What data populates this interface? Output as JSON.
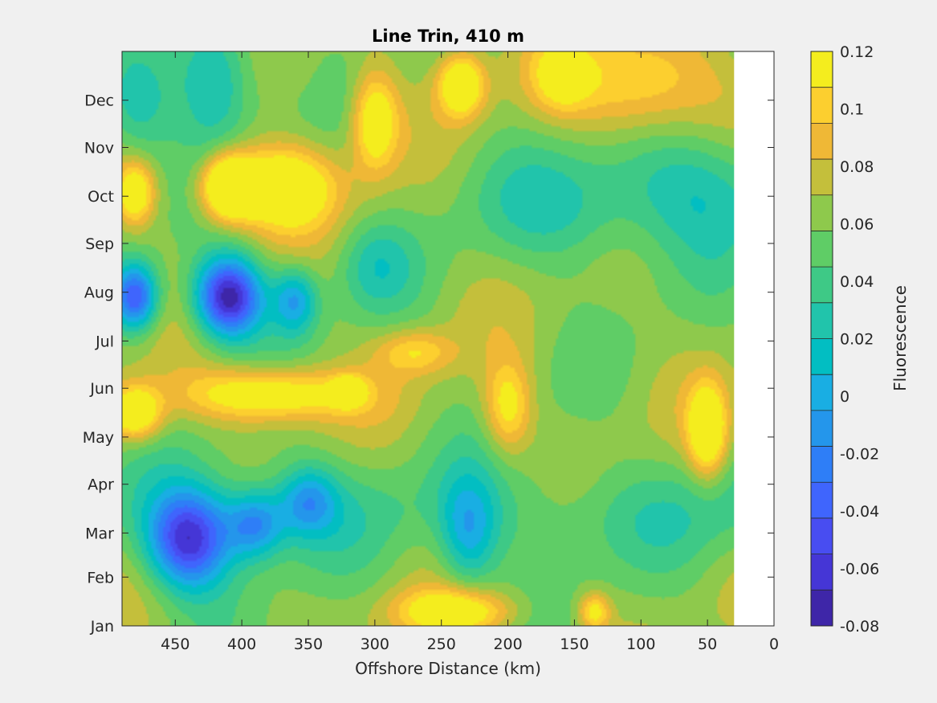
{
  "chart_data": {
    "type": "heatmap",
    "title": "Line Trin, 410 m",
    "xlabel": "Offshore Distance (km)",
    "ylabel": "",
    "x_reversed": true,
    "xlim": [
      490,
      0
    ],
    "data_xlim": [
      490,
      30
    ],
    "x_ticks": [
      "450",
      "400",
      "350",
      "300",
      "250",
      "200",
      "150",
      "100",
      "50",
      "0"
    ],
    "x_tick_values": [
      450,
      400,
      350,
      300,
      250,
      200,
      150,
      100,
      50,
      0
    ],
    "y_ticks": [
      "Jan",
      "Feb",
      "Mar",
      "Apr",
      "May",
      "Jun",
      "Jul",
      "Aug",
      "Sep",
      "Oct",
      "Nov",
      "Dec"
    ],
    "y_tick_values": [
      1,
      32,
      60,
      91,
      121,
      152,
      182,
      213,
      244,
      274,
      305,
      335
    ],
    "ylim": [
      1,
      366
    ],
    "grid": false,
    "colorbar": {
      "label": "Fluorescence",
      "min": -0.08,
      "max": 0.12,
      "step": 0.01,
      "tick_labels": [
        "-0.08",
        "-0.06",
        "-0.04",
        "-0.02",
        "0",
        "0.02",
        "0.04",
        "0.06",
        "0.08",
        "0.1",
        "0.12"
      ],
      "tick_values": [
        -0.08,
        -0.06,
        -0.04,
        -0.02,
        0,
        0.02,
        0.04,
        0.06,
        0.08,
        0.1,
        0.12
      ],
      "colors": [
        "#3e26a8",
        "#4536d6",
        "#484df1",
        "#3f65fd",
        "#2e7ef7",
        "#2496eb",
        "#19aee3",
        "#02bec2",
        "#21c4ab",
        "#3ec986",
        "#5fcd66",
        "#8ec94c",
        "#c4bf3b",
        "#efb836",
        "#fccf2f",
        "#f4ed1e"
      ]
    },
    "features": [
      {
        "x": 410,
        "y": 280,
        "value": 0.12,
        "sx": 14,
        "sy": 14
      },
      {
        "x": 370,
        "y": 280,
        "value": 0.1,
        "sx": 28,
        "sy": 18
      },
      {
        "x": 480,
        "y": 276,
        "value": 0.09,
        "sx": 10,
        "sy": 14
      },
      {
        "x": 300,
        "y": 322,
        "value": 0.09,
        "sx": 12,
        "sy": 22
      },
      {
        "x": 235,
        "y": 345,
        "value": 0.1,
        "sx": 12,
        "sy": 14
      },
      {
        "x": 100,
        "y": 345,
        "value": 0.08,
        "sx": 40,
        "sy": 25
      },
      {
        "x": 160,
        "y": 350,
        "value": 0.07,
        "sx": 15,
        "sy": 15
      },
      {
        "x": 480,
        "y": 136,
        "value": 0.1,
        "sx": 14,
        "sy": 12
      },
      {
        "x": 380,
        "y": 148,
        "value": 0.095,
        "sx": 45,
        "sy": 12
      },
      {
        "x": 50,
        "y": 125,
        "value": 0.1,
        "sx": 10,
        "sy": 20
      },
      {
        "x": 200,
        "y": 140,
        "value": 0.08,
        "sx": 12,
        "sy": 20
      },
      {
        "x": 240,
        "y": 10,
        "value": 0.09,
        "sx": 30,
        "sy": 10
      },
      {
        "x": 135,
        "y": 10,
        "value": 0.08,
        "sx": 8,
        "sy": 8
      },
      {
        "x": 410,
        "y": 210,
        "value": -0.08,
        "sx": 18,
        "sy": 18
      },
      {
        "x": 480,
        "y": 210,
        "value": -0.05,
        "sx": 12,
        "sy": 15
      },
      {
        "x": 440,
        "y": 55,
        "value": -0.06,
        "sx": 22,
        "sy": 22
      },
      {
        "x": 360,
        "y": 208,
        "value": -0.02,
        "sx": 12,
        "sy": 15
      },
      {
        "x": 300,
        "y": 230,
        "value": 0.01,
        "sx": 20,
        "sy": 20
      },
      {
        "x": 230,
        "y": 60,
        "value": -0.01,
        "sx": 15,
        "sy": 25
      },
      {
        "x": 390,
        "y": 65,
        "value": -0.02,
        "sx": 15,
        "sy": 15
      },
      {
        "x": 350,
        "y": 80,
        "value": -0.01,
        "sx": 15,
        "sy": 15
      },
      {
        "x": 50,
        "y": 280,
        "value": 0.01,
        "sx": 40,
        "sy": 30
      },
      {
        "x": 150,
        "y": 260,
        "value": 0.02,
        "sx": 40,
        "sy": 25
      },
      {
        "x": 170,
        "y": 70,
        "value": 0.02,
        "sx": 50,
        "sy": 25
      },
      {
        "x": 420,
        "y": 350,
        "value": -0.01,
        "sx": 20,
        "sy": 30
      },
      {
        "x": 480,
        "y": 330,
        "value": 0.0,
        "sx": 20,
        "sy": 25
      },
      {
        "x": 350,
        "y": 350,
        "value": 0.04,
        "sx": 12,
        "sy": 20
      },
      {
        "x": 320,
        "y": 150,
        "value": 0.09,
        "sx": 8,
        "sy": 6
      },
      {
        "x": 270,
        "y": 175,
        "value": 0.07,
        "sx": 20,
        "sy": 10
      }
    ]
  }
}
